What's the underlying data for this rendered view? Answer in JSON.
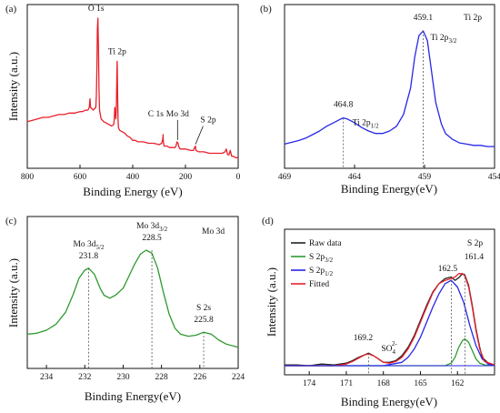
{
  "chart_data": [
    {
      "panel": "(a)",
      "type": "line",
      "xlabel": "Binding Energy (eV)",
      "ylabel": "Intensity (a.u.)",
      "xlim": [
        800,
        0
      ],
      "x_reversed": true,
      "xticks": [
        "800",
        "600",
        "400",
        "200",
        "0"
      ],
      "series": [
        {
          "color": "#e8202a",
          "x": [
            800,
            780,
            760,
            740,
            720,
            700,
            680,
            660,
            640,
            620,
            600,
            590,
            580,
            570,
            565,
            562,
            560,
            555,
            550,
            545,
            540,
            538,
            536,
            534,
            532,
            530,
            528,
            526,
            520,
            510,
            500,
            490,
            480,
            472,
            470,
            468,
            466,
            464,
            462,
            460,
            459,
            458,
            456,
            454,
            450,
            440,
            430,
            420,
            410,
            400,
            390,
            380,
            360,
            340,
            320,
            300,
            290,
            286,
            285,
            284,
            282,
            280,
            270,
            260,
            250,
            240,
            236,
            232,
            228,
            226,
            224,
            220,
            200,
            180,
            170,
            165,
            162,
            160,
            150,
            130,
            110,
            90,
            70,
            60,
            50,
            45,
            40,
            35,
            30,
            25,
            20,
            10,
            0
          ],
          "y": [
            0.28,
            0.29,
            0.3,
            0.31,
            0.31,
            0.32,
            0.33,
            0.33,
            0.34,
            0.34,
            0.35,
            0.35,
            0.36,
            0.36,
            0.38,
            0.44,
            0.38,
            0.37,
            0.36,
            0.37,
            0.38,
            0.46,
            0.66,
            0.92,
            1.0,
            0.8,
            0.5,
            0.36,
            0.3,
            0.28,
            0.27,
            0.26,
            0.25,
            0.26,
            0.3,
            0.38,
            0.34,
            0.3,
            0.38,
            0.62,
            0.7,
            0.55,
            0.3,
            0.24,
            0.22,
            0.21,
            0.2,
            0.18,
            0.17,
            0.15,
            0.15,
            0.14,
            0.14,
            0.13,
            0.13,
            0.12,
            0.13,
            0.16,
            0.19,
            0.15,
            0.12,
            0.11,
            0.11,
            0.1,
            0.1,
            0.1,
            0.11,
            0.14,
            0.13,
            0.11,
            0.1,
            0.09,
            0.09,
            0.08,
            0.08,
            0.1,
            0.11,
            0.08,
            0.07,
            0.07,
            0.06,
            0.06,
            0.06,
            0.06,
            0.07,
            0.09,
            0.05,
            0.05,
            0.08,
            0.04,
            0.04,
            0.03,
            0.03
          ]
        }
      ],
      "annotations": [
        {
          "text": "O 1s",
          "x": 532,
          "y": 1.0
        },
        {
          "text": "Ti 2p",
          "x": 459,
          "y": 0.7
        },
        {
          "text": "C 1s",
          "x": 285,
          "y": 0.19
        },
        {
          "text": "Mo 3d",
          "x": 230,
          "y": 0.14
        },
        {
          "text": "S 2p",
          "x": 162,
          "y": 0.11
        }
      ]
    },
    {
      "panel": "(b)",
      "type": "line",
      "xlabel": "Binding Energy(eV)",
      "ylabel": "",
      "xlim": [
        469,
        454
      ],
      "x_reversed": true,
      "xticks": [
        "469",
        "464",
        "459",
        "454"
      ],
      "title_right": "Ti 2p",
      "series": [
        {
          "color": "#2727e8",
          "x": [
            469,
            468,
            467.5,
            467,
            466.5,
            466,
            465.5,
            465,
            464.8,
            464.5,
            464,
            463.5,
            463,
            462.5,
            462,
            461.5,
            461,
            460.5,
            460,
            459.7,
            459.4,
            459.1,
            458.8,
            458.5,
            458.2,
            457.8,
            457.5,
            457,
            456.5,
            456,
            455.5,
            455,
            454.5,
            454
          ],
          "y": [
            0.05,
            0.08,
            0.1,
            0.13,
            0.16,
            0.2,
            0.23,
            0.26,
            0.27,
            0.26,
            0.23,
            0.19,
            0.16,
            0.14,
            0.14,
            0.16,
            0.2,
            0.3,
            0.52,
            0.78,
            0.96,
            1.0,
            0.92,
            0.66,
            0.4,
            0.22,
            0.14,
            0.09,
            0.06,
            0.05,
            0.04,
            0.04,
            0.03,
            0.03
          ]
        }
      ],
      "peaks": [
        {
          "value": "464.8",
          "label": "Ti 2p1/2",
          "label_main": "Ti 2p",
          "label_sub": "1/2",
          "x": 464.8,
          "y": 0.27
        },
        {
          "value": "459.1",
          "label": "Ti 2p3/2",
          "label_main": "Ti 2p",
          "label_sub": "3/2",
          "x": 459.1,
          "y": 1.0
        }
      ]
    },
    {
      "panel": "(c)",
      "type": "line",
      "xlabel": "Binding Energy(eV)",
      "ylabel": "Intensity (a.u.)",
      "xlim": [
        235,
        224
      ],
      "x_reversed": true,
      "xticks": [
        "234",
        "232",
        "230",
        "228",
        "226",
        "224"
      ],
      "title_right": "Mo 3d",
      "series": [
        {
          "color": "#2e9a2e",
          "x": [
            235,
            234.5,
            234,
            233.5,
            233,
            232.6,
            232.3,
            232,
            231.8,
            231.5,
            231.2,
            231,
            230.7,
            230.4,
            230,
            229.7,
            229.4,
            229.1,
            228.8,
            228.5,
            228.2,
            227.9,
            227.6,
            227.3,
            227,
            226.6,
            226.2,
            225.8,
            225.4,
            225,
            224.6,
            224.2,
            224
          ],
          "y": [
            0.16,
            0.17,
            0.2,
            0.26,
            0.38,
            0.56,
            0.72,
            0.8,
            0.82,
            0.76,
            0.62,
            0.55,
            0.52,
            0.55,
            0.62,
            0.74,
            0.86,
            0.96,
            1.0,
            0.97,
            0.82,
            0.58,
            0.36,
            0.22,
            0.16,
            0.14,
            0.15,
            0.18,
            0.16,
            0.1,
            0.06,
            0.04,
            0.03
          ]
        }
      ],
      "peaks": [
        {
          "value": "231.8",
          "label": "Mo 3d5/2",
          "label_main": "Mo 3d",
          "label_sub": "5/2",
          "x": 231.8,
          "y": 0.82
        },
        {
          "value": "228.5",
          "label": "Mo 3d3/2",
          "label_main": "Mo 3d",
          "label_sub": "3/2",
          "x": 228.5,
          "y": 1.0
        },
        {
          "value": "225.8",
          "label": "S 2s",
          "label_main": "S 2s",
          "label_sub": "",
          "x": 225.8,
          "y": 0.18
        }
      ]
    },
    {
      "panel": "(d)",
      "type": "line",
      "xlabel": "Binding Energy(eV)",
      "ylabel": "Intensity (a.u.)",
      "xlim": [
        176,
        159
      ],
      "x_reversed": true,
      "xticks": [
        "174",
        "171",
        "168",
        "165",
        "162"
      ],
      "title_right": "S 2p",
      "legend": [
        {
          "label": "Raw data",
          "label_main": "Raw data",
          "label_sub": "",
          "color": "#222222"
        },
        {
          "label": "S 2p3/2",
          "label_main": "S 2p",
          "label_sub": "3/2",
          "color": "#2e9a2e"
        },
        {
          "label": "S 2p1/2",
          "label_main": "S 2p",
          "label_sub": "1/2",
          "color": "#2727e8"
        },
        {
          "label": "Fitted",
          "label_main": "Fitted",
          "label_sub": "",
          "color": "#e8202a"
        }
      ],
      "series": [
        {
          "name": "Raw data",
          "color": "#222222",
          "x": [
            176,
            175,
            174,
            173,
            172,
            171,
            170.5,
            170,
            169.5,
            169.2,
            168.8,
            168.4,
            168,
            167.5,
            167,
            166.5,
            166,
            165.5,
            165,
            164.5,
            164,
            163.5,
            163,
            162.5,
            162.2,
            161.9,
            161.6,
            161.4,
            161.1,
            160.8,
            160.5,
            160.2,
            160,
            159.5,
            159
          ],
          "y": [
            0.01,
            0.01,
            0.0,
            0.02,
            0.01,
            0.03,
            0.06,
            0.1,
            0.13,
            0.15,
            0.12,
            0.08,
            0.04,
            0.04,
            0.06,
            0.12,
            0.22,
            0.36,
            0.54,
            0.72,
            0.88,
            0.98,
            1.04,
            1.06,
            1.02,
            1.05,
            1.1,
            1.08,
            0.96,
            0.72,
            0.44,
            0.22,
            0.1,
            0.03,
            0.01
          ]
        },
        {
          "name": "S 2p3/2",
          "color": "#2e9a2e",
          "x": [
            176,
            163,
            162.5,
            162.2,
            161.9,
            161.6,
            161.4,
            161.1,
            160.8,
            160.5,
            160.2,
            159.8,
            159
          ],
          "y": [
            0,
            0,
            0.03,
            0.1,
            0.22,
            0.3,
            0.32,
            0.28,
            0.18,
            0.08,
            0.03,
            0.01,
            0
          ]
        },
        {
          "name": "S 2p1/2",
          "color": "#2727e8",
          "x": [
            176,
            171,
            168,
            166.5,
            166,
            165.5,
            165,
            164.5,
            164,
            163.5,
            163,
            162.5,
            162,
            161.5,
            161,
            160.5,
            160,
            159.5,
            159
          ],
          "y": [
            0,
            0,
            0,
            0.04,
            0.1,
            0.2,
            0.34,
            0.52,
            0.7,
            0.86,
            0.98,
            1.02,
            0.94,
            0.76,
            0.48,
            0.24,
            0.08,
            0.02,
            0
          ]
        },
        {
          "name": "Fitted",
          "color": "#e8202a",
          "x": [
            176,
            172,
            171,
            170.5,
            170,
            169.5,
            169.2,
            168.8,
            168.4,
            168,
            167.5,
            167,
            166.5,
            166,
            165.5,
            165,
            164.5,
            164,
            163.5,
            163,
            162.5,
            162.2,
            161.9,
            161.6,
            161.4,
            161.1,
            160.8,
            160.5,
            160.2,
            159.8,
            159
          ],
          "y": [
            0,
            0,
            0.02,
            0.05,
            0.09,
            0.13,
            0.14,
            0.12,
            0.08,
            0.04,
            0.03,
            0.05,
            0.1,
            0.2,
            0.34,
            0.52,
            0.7,
            0.87,
            0.98,
            1.02,
            1.04,
            1.06,
            1.1,
            1.1,
            1.07,
            0.94,
            0.7,
            0.42,
            0.2,
            0.05,
            0.01
          ]
        }
      ],
      "peaks": [
        {
          "value": "169.2",
          "label": "SO4 2-",
          "x": 169.2,
          "y": 0.15
        },
        {
          "value": "162.5",
          "label": "",
          "x": 162.5,
          "y": 1.02
        },
        {
          "value": "161.4",
          "label": "",
          "x": 161.4,
          "y": 1.1
        }
      ],
      "so4": {
        "main": "SO",
        "sub": "4",
        "sup": "2-"
      }
    }
  ]
}
